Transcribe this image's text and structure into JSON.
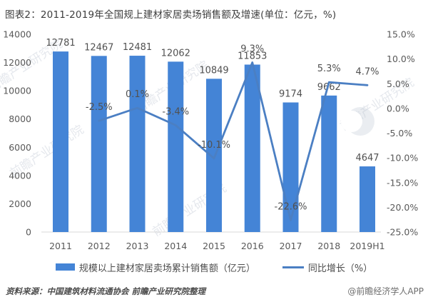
{
  "title": "图表2：2011-2019年全国规上建材家居卖场销售额及增速(单位：亿元，%)",
  "colors": {
    "bar": "#4484d6",
    "line": "#4b7fc3",
    "value_label": "#515151",
    "axis_label": "#595959",
    "baseline": "#d9d9d9"
  },
  "chart_data": {
    "type": "bar+line combo",
    "categories": [
      "2011",
      "2012",
      "2013",
      "2014",
      "2015",
      "2016",
      "2017",
      "2018",
      "2019H1"
    ],
    "series": [
      {
        "name": "规模以上建材家居卖场累计销售额（亿元）",
        "type": "bar",
        "axis": "left",
        "values": [
          12781,
          12467,
          12481,
          12062,
          10849,
          11853,
          9174,
          9662,
          4647
        ]
      },
      {
        "name": "同比增长（%）",
        "type": "line",
        "axis": "right",
        "values": [
          null,
          -2.5,
          0.1,
          -3.4,
          -10.1,
          9.3,
          -22.6,
          5.3,
          4.7
        ]
      }
    ],
    "bar_labels": [
      "12781",
      "12467",
      "12481",
      "12062",
      "10849",
      "11853",
      "9174",
      "9662",
      "4647"
    ],
    "line_labels": [
      null,
      "-2.5%",
      "0.1%",
      "-3.4%",
      "-10.1%",
      "9.3%",
      "-22.6%",
      "5.3%",
      "4.7%"
    ],
    "left_axis": {
      "min": 0,
      "max": 14000,
      "step": 2000,
      "ticks": [
        "14000",
        "12000",
        "10000",
        "8000",
        "6000",
        "4000",
        "2000",
        "0"
      ]
    },
    "right_axis": {
      "min": -25,
      "max": 15,
      "step": 5,
      "ticks": [
        "15.0%",
        "10.0%",
        "5.0%",
        "0.0%",
        "-5.0%",
        "-10.0%",
        "-15.0%",
        "-20.0%",
        "-25.0%"
      ]
    },
    "grid": false,
    "legend_position": "bottom",
    "legend": [
      {
        "label": "规模以上建材家居卖场累计销售额（亿元）",
        "type": "bar"
      },
      {
        "label": "同比增长（%）",
        "type": "line"
      }
    ]
  },
  "footer": {
    "source": "资料来源：中国建筑材料流通协会 前瞻产业研究院整理",
    "credit": "@前瞻经济学人APP"
  },
  "watermark": {
    "text": "前瞻产业研究院"
  }
}
